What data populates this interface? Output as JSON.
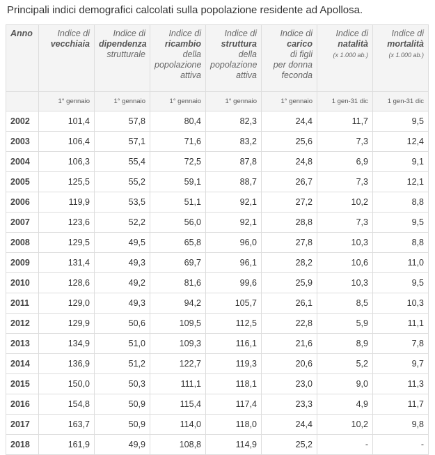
{
  "caption": "Principali indici demografici calcolati sulla popolazione residente ad Apollosa.",
  "headers": [
    {
      "lines": [
        {
          "t": "Anno",
          "b": true
        }
      ]
    },
    {
      "lines": [
        {
          "t": "Indice di",
          "b": false
        },
        {
          "t": "vecchiaia",
          "b": true
        }
      ]
    },
    {
      "lines": [
        {
          "t": "Indice di",
          "b": false
        },
        {
          "t": "dipendenza",
          "b": true
        },
        {
          "t": "strutturale",
          "b": false
        }
      ]
    },
    {
      "lines": [
        {
          "t": "Indice di",
          "b": false
        },
        {
          "t": "ricambio",
          "b": true
        },
        {
          "t": "della",
          "b": false
        },
        {
          "t": "popolazione",
          "b": false
        },
        {
          "t": "attiva",
          "b": false
        }
      ]
    },
    {
      "lines": [
        {
          "t": "Indice di",
          "b": false
        },
        {
          "t": "struttura",
          "b": true
        },
        {
          "t": "della",
          "b": false
        },
        {
          "t": "popolazione",
          "b": false
        },
        {
          "t": "attiva",
          "b": false
        }
      ]
    },
    {
      "lines": [
        {
          "t": "Indice di",
          "b": false
        },
        {
          "t": "carico",
          "b": true
        },
        {
          "t": "di figli",
          "b": false
        },
        {
          "t": "per donna",
          "b": false
        },
        {
          "t": "feconda",
          "b": false
        }
      ]
    },
    {
      "lines": [
        {
          "t": "Indice di",
          "b": false
        },
        {
          "t": "natalità",
          "b": true
        }
      ],
      "unit": "(x 1.000 ab.)"
    },
    {
      "lines": [
        {
          "t": "Indice di",
          "b": false
        },
        {
          "t": "mortalità",
          "b": true
        }
      ],
      "unit": "(x 1.000 ab.)"
    }
  ],
  "subheaders": [
    "",
    "1° gennaio",
    "1° gennaio",
    "1° gennaio",
    "1° gennaio",
    "1° gennaio",
    "1 gen-31 dic",
    "1 gen-31 dic"
  ],
  "rows": [
    [
      "2002",
      "101,4",
      "57,8",
      "80,4",
      "82,3",
      "24,4",
      "11,7",
      "9,5"
    ],
    [
      "2003",
      "106,4",
      "57,1",
      "71,6",
      "83,2",
      "25,6",
      "7,3",
      "12,4"
    ],
    [
      "2004",
      "106,3",
      "55,4",
      "72,5",
      "87,8",
      "24,8",
      "6,9",
      "9,1"
    ],
    [
      "2005",
      "125,5",
      "55,2",
      "59,1",
      "88,7",
      "26,7",
      "7,3",
      "12,1"
    ],
    [
      "2006",
      "119,9",
      "53,5",
      "51,1",
      "92,1",
      "27,2",
      "10,2",
      "8,8"
    ],
    [
      "2007",
      "123,6",
      "52,2",
      "56,0",
      "92,1",
      "28,8",
      "7,3",
      "9,5"
    ],
    [
      "2008",
      "129,5",
      "49,5",
      "65,8",
      "96,0",
      "27,8",
      "10,3",
      "8,8"
    ],
    [
      "2009",
      "131,4",
      "49,3",
      "69,7",
      "96,1",
      "28,2",
      "10,6",
      "11,0"
    ],
    [
      "2010",
      "128,6",
      "49,2",
      "81,6",
      "99,6",
      "25,9",
      "10,3",
      "9,5"
    ],
    [
      "2011",
      "129,0",
      "49,3",
      "94,2",
      "105,7",
      "26,1",
      "8,5",
      "10,3"
    ],
    [
      "2012",
      "129,9",
      "50,6",
      "109,5",
      "112,5",
      "22,8",
      "5,9",
      "11,1"
    ],
    [
      "2013",
      "134,9",
      "51,0",
      "109,3",
      "116,1",
      "21,6",
      "8,9",
      "7,8"
    ],
    [
      "2014",
      "136,9",
      "51,2",
      "122,7",
      "119,3",
      "20,6",
      "5,2",
      "9,7"
    ],
    [
      "2015",
      "150,0",
      "50,3",
      "111,1",
      "118,1",
      "23,0",
      "9,0",
      "11,3"
    ],
    [
      "2016",
      "154,8",
      "50,9",
      "115,4",
      "117,4",
      "23,3",
      "4,9",
      "11,7"
    ],
    [
      "2017",
      "163,7",
      "50,9",
      "114,0",
      "118,0",
      "24,4",
      "10,2",
      "9,8"
    ],
    [
      "2018",
      "161,9",
      "49,9",
      "108,8",
      "114,9",
      "25,2",
      "-",
      "-"
    ]
  ]
}
